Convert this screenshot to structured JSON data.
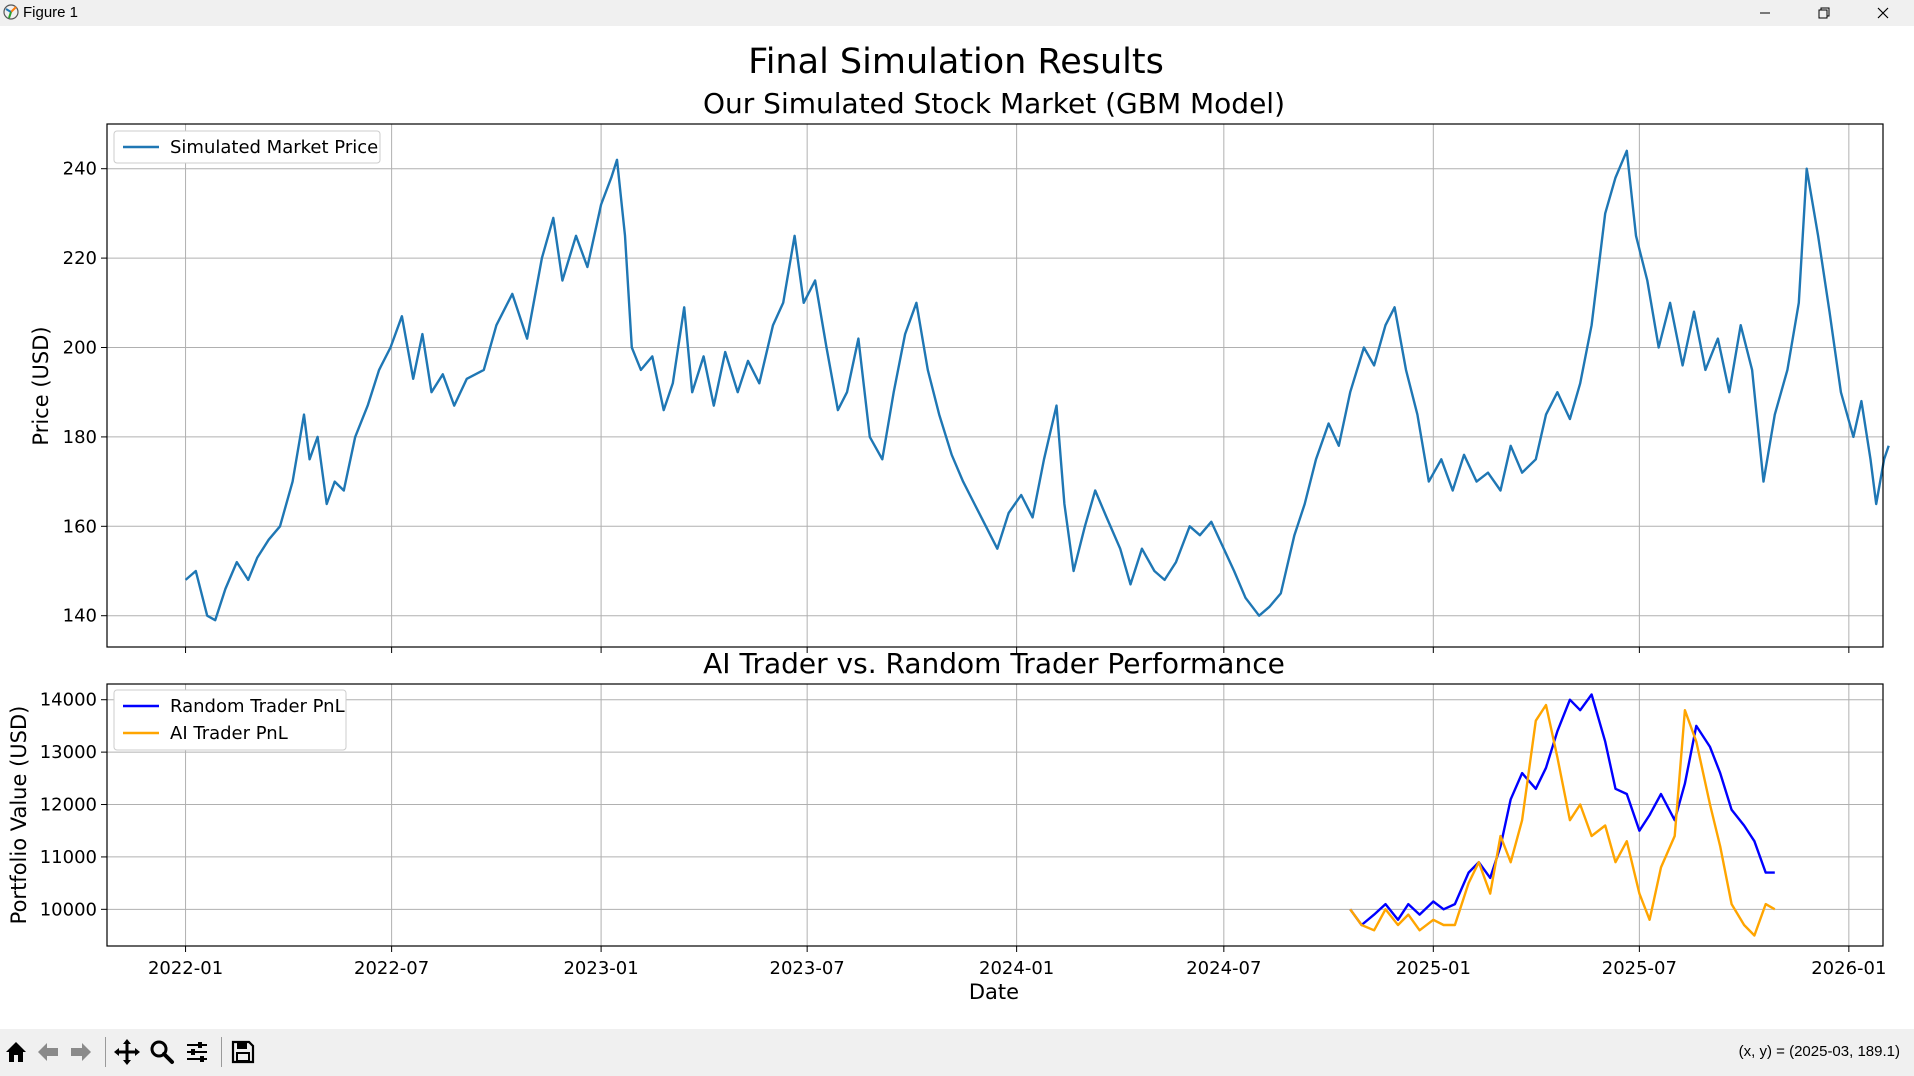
{
  "window": {
    "title": "Figure 1",
    "icons": [
      "matplotlib-logo-icon",
      "minimize-icon",
      "restore-icon",
      "close-icon"
    ]
  },
  "figure": {
    "suptitle": "Final Simulation Results"
  },
  "chart_data": [
    {
      "type": "line",
      "title": "Our Simulated Stock Market (GBM Model)",
      "xlabel": "",
      "ylabel": "Price (USD)",
      "x_ticks": [
        "2022-01",
        "2022-07",
        "2023-01",
        "2023-07",
        "2024-01",
        "2024-07",
        "2025-01",
        "2025-07",
        "2026-01"
      ],
      "y_ticks": [
        140,
        160,
        180,
        200,
        220,
        240
      ],
      "xlim": [
        "2021-10-24",
        "2026-01-31"
      ],
      "ylim": [
        133,
        250
      ],
      "grid": true,
      "legend": "upper left",
      "series": [
        {
          "name": "Simulated Market Price",
          "color": "#1f77b4",
          "points": [
            [
              "2022-01-01",
              148
            ],
            [
              "2022-01-10",
              150
            ],
            [
              "2022-01-20",
              140
            ],
            [
              "2022-01-27",
              139
            ],
            [
              "2022-02-05",
              146
            ],
            [
              "2022-02-15",
              152
            ],
            [
              "2022-02-25",
              148
            ],
            [
              "2022-03-05",
              153
            ],
            [
              "2022-03-15",
              157
            ],
            [
              "2022-03-25",
              160
            ],
            [
              "2022-04-05",
              170
            ],
            [
              "2022-04-15",
              185
            ],
            [
              "2022-04-20",
              175
            ],
            [
              "2022-04-27",
              180
            ],
            [
              "2022-05-05",
              165
            ],
            [
              "2022-05-12",
              170
            ],
            [
              "2022-05-20",
              168
            ],
            [
              "2022-05-30",
              180
            ],
            [
              "2022-06-10",
              187
            ],
            [
              "2022-06-20",
              195
            ],
            [
              "2022-06-30",
              200
            ],
            [
              "2022-07-10",
              207
            ],
            [
              "2022-07-20",
              193
            ],
            [
              "2022-07-28",
              203
            ],
            [
              "2022-08-05",
              190
            ],
            [
              "2022-08-15",
              194
            ],
            [
              "2022-08-25",
              187
            ],
            [
              "2022-09-05",
              193
            ],
            [
              "2022-09-20",
              195
            ],
            [
              "2022-10-01",
              205
            ],
            [
              "2022-10-15",
              212
            ],
            [
              "2022-10-28",
              202
            ],
            [
              "2022-11-10",
              220
            ],
            [
              "2022-11-20",
              229
            ],
            [
              "2022-11-28",
              215
            ],
            [
              "2022-12-10",
              225
            ],
            [
              "2022-12-20",
              218
            ],
            [
              "2023-01-01",
              232
            ],
            [
              "2023-01-10",
              238
            ],
            [
              "2023-01-15",
              242
            ],
            [
              "2023-01-22",
              225
            ],
            [
              "2023-01-28",
              200
            ],
            [
              "2023-02-05",
              195
            ],
            [
              "2023-02-15",
              198
            ],
            [
              "2023-02-25",
              186
            ],
            [
              "2023-03-05",
              192
            ],
            [
              "2023-03-15",
              209
            ],
            [
              "2023-03-22",
              190
            ],
            [
              "2023-04-01",
              198
            ],
            [
              "2023-04-10",
              187
            ],
            [
              "2023-04-20",
              199
            ],
            [
              "2023-05-01",
              190
            ],
            [
              "2023-05-10",
              197
            ],
            [
              "2023-05-20",
              192
            ],
            [
              "2023-06-01",
              205
            ],
            [
              "2023-06-10",
              210
            ],
            [
              "2023-06-20",
              225
            ],
            [
              "2023-06-28",
              210
            ],
            [
              "2023-07-08",
              215
            ],
            [
              "2023-07-18",
              200
            ],
            [
              "2023-07-28",
              186
            ],
            [
              "2023-08-05",
              190
            ],
            [
              "2023-08-15",
              202
            ],
            [
              "2023-08-25",
              180
            ],
            [
              "2023-09-05",
              175
            ],
            [
              "2023-09-15",
              190
            ],
            [
              "2023-09-25",
              203
            ],
            [
              "2023-10-05",
              210
            ],
            [
              "2023-10-15",
              195
            ],
            [
              "2023-10-25",
              185
            ],
            [
              "2023-11-05",
              176
            ],
            [
              "2023-11-15",
              170
            ],
            [
              "2023-11-25",
              165
            ],
            [
              "2023-12-05",
              160
            ],
            [
              "2023-12-15",
              155
            ],
            [
              "2023-12-25",
              163
            ],
            [
              "2024-01-05",
              167
            ],
            [
              "2024-01-15",
              162
            ],
            [
              "2024-01-25",
              175
            ],
            [
              "2024-02-05",
              187
            ],
            [
              "2024-02-12",
              165
            ],
            [
              "2024-02-20",
              150
            ],
            [
              "2024-03-01",
              160
            ],
            [
              "2024-03-10",
              168
            ],
            [
              "2024-03-20",
              162
            ],
            [
              "2024-04-01",
              155
            ],
            [
              "2024-04-10",
              147
            ],
            [
              "2024-04-20",
              155
            ],
            [
              "2024-05-01",
              150
            ],
            [
              "2024-05-10",
              148
            ],
            [
              "2024-05-20",
              152
            ],
            [
              "2024-06-01",
              160
            ],
            [
              "2024-06-10",
              158
            ],
            [
              "2024-06-20",
              161
            ],
            [
              "2024-07-01",
              155
            ],
            [
              "2024-07-10",
              150
            ],
            [
              "2024-07-20",
              144
            ],
            [
              "2024-08-01",
              140
            ],
            [
              "2024-08-10",
              142
            ],
            [
              "2024-08-20",
              145
            ],
            [
              "2024-09-01",
              158
            ],
            [
              "2024-09-10",
              165
            ],
            [
              "2024-09-20",
              175
            ],
            [
              "2024-10-01",
              183
            ],
            [
              "2024-10-10",
              178
            ],
            [
              "2024-10-20",
              190
            ],
            [
              "2024-11-01",
              200
            ],
            [
              "2024-11-10",
              196
            ],
            [
              "2024-11-20",
              205
            ],
            [
              "2024-11-28",
              209
            ],
            [
              "2024-12-08",
              195
            ],
            [
              "2024-12-18",
              185
            ],
            [
              "2024-12-28",
              170
            ],
            [
              "2025-01-08",
              175
            ],
            [
              "2025-01-18",
              168
            ],
            [
              "2025-01-28",
              176
            ],
            [
              "2025-02-08",
              170
            ],
            [
              "2025-02-18",
              172
            ],
            [
              "2025-03-01",
              168
            ],
            [
              "2025-03-10",
              178
            ],
            [
              "2025-03-20",
              172
            ],
            [
              "2025-04-01",
              175
            ],
            [
              "2025-04-10",
              185
            ],
            [
              "2025-04-20",
              190
            ],
            [
              "2025-05-01",
              184
            ],
            [
              "2025-05-10",
              192
            ],
            [
              "2025-05-20",
              205
            ],
            [
              "2025-06-01",
              230
            ],
            [
              "2025-06-10",
              238
            ],
            [
              "2025-06-20",
              244
            ],
            [
              "2025-06-28",
              225
            ],
            [
              "2025-07-08",
              215
            ],
            [
              "2025-07-18",
              200
            ],
            [
              "2025-07-28",
              210
            ],
            [
              "2025-08-08",
              196
            ],
            [
              "2025-08-18",
              208
            ],
            [
              "2025-08-28",
              195
            ],
            [
              "2025-09-08",
              202
            ],
            [
              "2025-09-18",
              190
            ],
            [
              "2025-09-28",
              205
            ],
            [
              "2025-10-08",
              195
            ],
            [
              "2025-10-18",
              170
            ],
            [
              "2025-10-28",
              185
            ],
            [
              "2025-11-08",
              195
            ],
            [
              "2025-11-18",
              210
            ],
            [
              "2025-11-25",
              240
            ],
            [
              "2025-12-05",
              225
            ],
            [
              "2025-12-15",
              208
            ],
            [
              "2025-12-25",
              190
            ],
            [
              "2026-01-05",
              180
            ],
            [
              "2026-01-12",
              188
            ],
            [
              "2026-01-20",
              175
            ],
            [
              "2026-01-25",
              165
            ],
            [
              "2026-02-01",
              175
            ],
            [
              "2026-02-05",
              178
            ]
          ]
        }
      ]
    },
    {
      "type": "line",
      "title": "AI Trader vs. Random Trader Performance",
      "xlabel": "Date",
      "ylabel": "Portfolio Value (USD)",
      "x_ticks": [
        "2022-01",
        "2022-07",
        "2023-01",
        "2023-07",
        "2024-01",
        "2024-07",
        "2025-01",
        "2025-07",
        "2026-01"
      ],
      "y_ticks": [
        10000,
        11000,
        12000,
        13000,
        14000
      ],
      "xlim": [
        "2021-10-24",
        "2026-01-31"
      ],
      "ylim": [
        9300,
        14300
      ],
      "grid": true,
      "legend": "upper left",
      "series": [
        {
          "name": "Random Trader PnL",
          "color": "#0000ff",
          "points": [
            [
              "2024-10-20",
              10000
            ],
            [
              "2024-10-30",
              9700
            ],
            [
              "2024-11-10",
              9900
            ],
            [
              "2024-11-20",
              10100
            ],
            [
              "2024-12-01",
              9800
            ],
            [
              "2024-12-10",
              10100
            ],
            [
              "2024-12-20",
              9900
            ],
            [
              "2025-01-01",
              10150
            ],
            [
              "2025-01-10",
              10000
            ],
            [
              "2025-01-20",
              10100
            ],
            [
              "2025-02-01",
              10700
            ],
            [
              "2025-02-10",
              10900
            ],
            [
              "2025-02-20",
              10600
            ],
            [
              "2025-03-01",
              11200
            ],
            [
              "2025-03-10",
              12100
            ],
            [
              "2025-03-20",
              12600
            ],
            [
              "2025-04-01",
              12300
            ],
            [
              "2025-04-10",
              12700
            ],
            [
              "2025-04-20",
              13400
            ],
            [
              "2025-05-01",
              14000
            ],
            [
              "2025-05-10",
              13800
            ],
            [
              "2025-05-20",
              14100
            ],
            [
              "2025-06-01",
              13200
            ],
            [
              "2025-06-10",
              12300
            ],
            [
              "2025-06-20",
              12200
            ],
            [
              "2025-07-01",
              11500
            ],
            [
              "2025-07-10",
              11800
            ],
            [
              "2025-07-20",
              12200
            ],
            [
              "2025-08-01",
              11700
            ],
            [
              "2025-08-10",
              12400
            ],
            [
              "2025-08-20",
              13500
            ],
            [
              "2025-09-01",
              13100
            ],
            [
              "2025-09-10",
              12600
            ],
            [
              "2025-09-20",
              11900
            ],
            [
              "2025-10-01",
              11600
            ],
            [
              "2025-10-10",
              11300
            ],
            [
              "2025-10-20",
              10700
            ],
            [
              "2025-10-28",
              10700
            ]
          ]
        },
        {
          "name": "AI Trader PnL",
          "color": "#ffa500",
          "points": [
            [
              "2024-10-20",
              10000
            ],
            [
              "2024-10-30",
              9700
            ],
            [
              "2024-11-10",
              9600
            ],
            [
              "2024-11-20",
              10000
            ],
            [
              "2024-12-01",
              9700
            ],
            [
              "2024-12-10",
              9900
            ],
            [
              "2024-12-20",
              9600
            ],
            [
              "2025-01-01",
              9800
            ],
            [
              "2025-01-10",
              9700
            ],
            [
              "2025-01-20",
              9700
            ],
            [
              "2025-02-01",
              10500
            ],
            [
              "2025-02-10",
              10900
            ],
            [
              "2025-02-20",
              10300
            ],
            [
              "2025-03-01",
              11400
            ],
            [
              "2025-03-10",
              10900
            ],
            [
              "2025-03-20",
              11700
            ],
            [
              "2025-04-01",
              13600
            ],
            [
              "2025-04-10",
              13900
            ],
            [
              "2025-04-20",
              12900
            ],
            [
              "2025-05-01",
              11700
            ],
            [
              "2025-05-10",
              12000
            ],
            [
              "2025-05-20",
              11400
            ],
            [
              "2025-06-01",
              11600
            ],
            [
              "2025-06-10",
              10900
            ],
            [
              "2025-06-20",
              11300
            ],
            [
              "2025-07-01",
              10300
            ],
            [
              "2025-07-10",
              9800
            ],
            [
              "2025-07-20",
              10800
            ],
            [
              "2025-08-01",
              11400
            ],
            [
              "2025-08-10",
              13800
            ],
            [
              "2025-08-20",
              13200
            ],
            [
              "2025-09-01",
              12000
            ],
            [
              "2025-09-10",
              11200
            ],
            [
              "2025-09-20",
              10100
            ],
            [
              "2025-10-01",
              9700
            ],
            [
              "2025-10-10",
              9500
            ],
            [
              "2025-10-20",
              10100
            ],
            [
              "2025-10-28",
              10000
            ]
          ]
        }
      ]
    }
  ],
  "toolbar": {
    "icons": [
      "home-icon",
      "back-icon",
      "forward-icon",
      "pan-icon",
      "zoom-icon",
      "configure-subplots-icon",
      "save-icon"
    ],
    "coords_text": "(x, y) = (2025-03, 189.1)"
  }
}
